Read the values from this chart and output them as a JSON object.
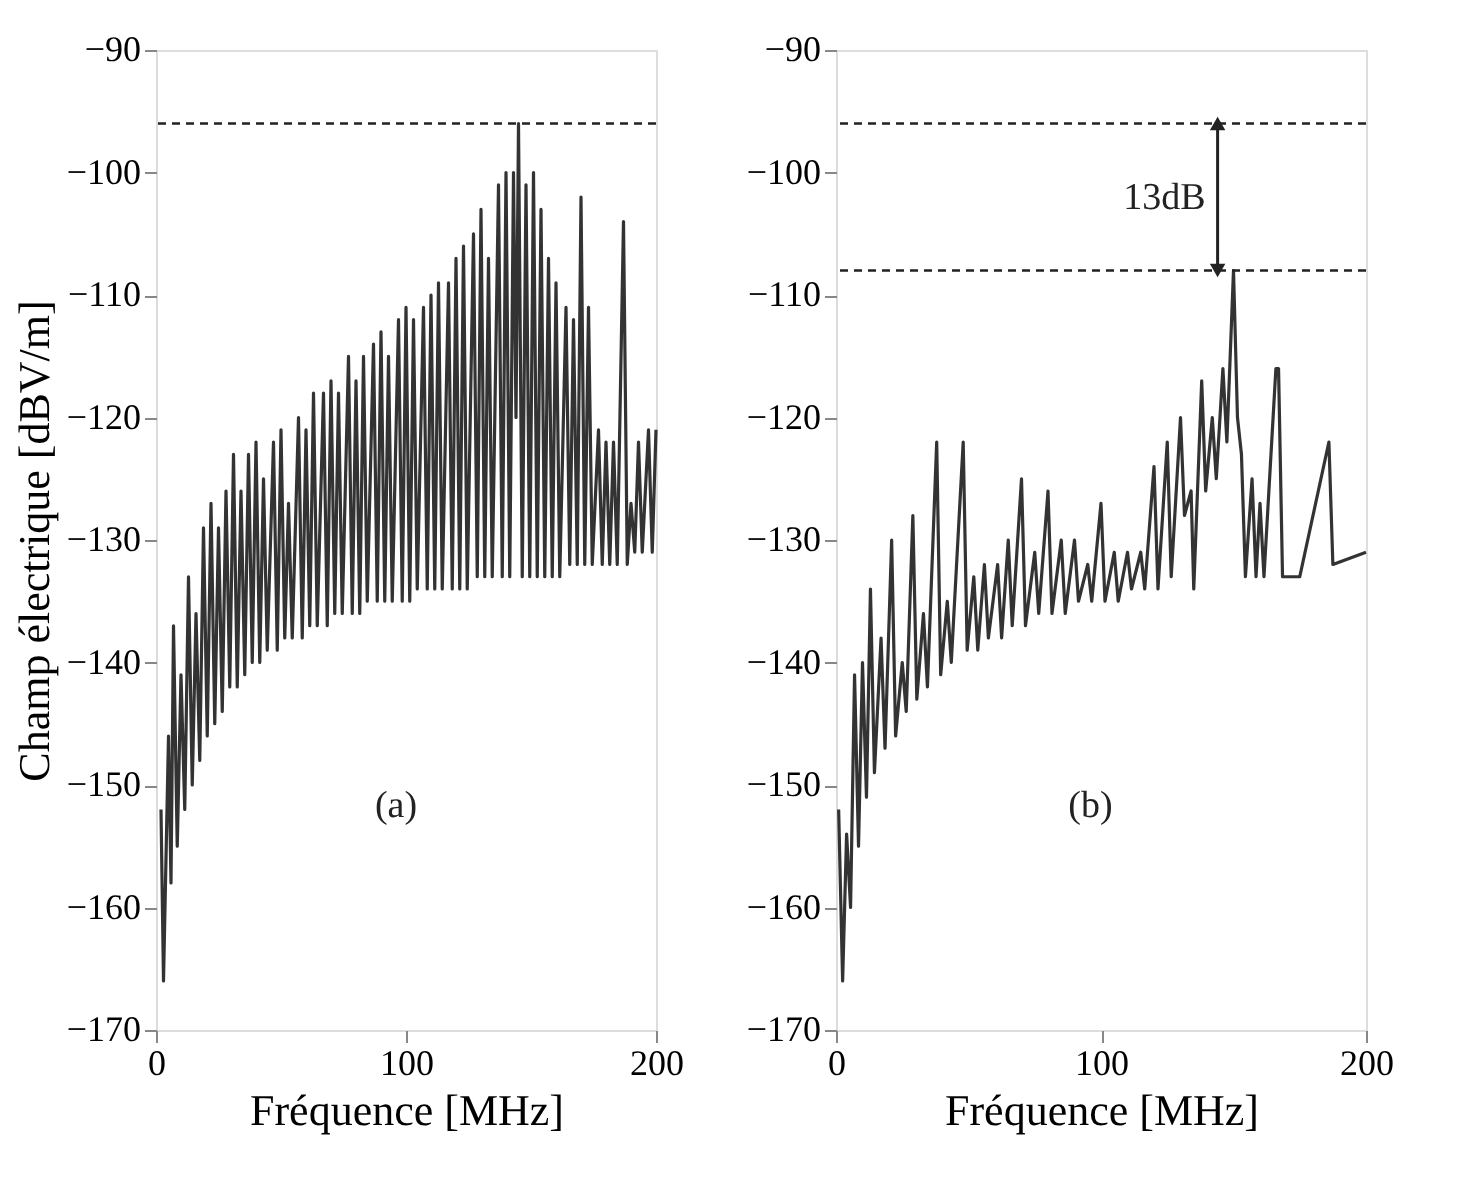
{
  "chart_data": [
    {
      "type": "line",
      "xlabel": "Fréquence  [MHz]",
      "ylabel": "Champ électrique [dBV/m]",
      "xlim": [
        0,
        200
      ],
      "xticks": [
        0,
        100,
        200
      ],
      "ylim": [
        -170,
        -90
      ],
      "yticks": [
        -170,
        -160,
        -150,
        -140,
        -130,
        -120,
        -110,
        -100,
        -90
      ],
      "grid": false,
      "marker": "none",
      "line_style": "solid",
      "annotations": [
        "(a)"
      ],
      "ref_lines": [
        {
          "axis": "y",
          "value": -96,
          "line_style": "dashed"
        }
      ],
      "series": [
        {
          "color": "#333333",
          "x": [
            2,
            3,
            5,
            6,
            7,
            8.5,
            10,
            11.5,
            13,
            14.5,
            16,
            17.5,
            19,
            20.5,
            22,
            23.5,
            25,
            26.5,
            28,
            29.5,
            31,
            32.5,
            34,
            35.5,
            37,
            38.5,
            40,
            41.5,
            43,
            44.5,
            47,
            48.5,
            50,
            51.5,
            53,
            54.5,
            57,
            58.5,
            60,
            61.5,
            63,
            64.5,
            67,
            68.5,
            70,
            71.5,
            73,
            74.5,
            77,
            78.5,
            80,
            81.5,
            83,
            84.5,
            87,
            88.5,
            90,
            91.5,
            93,
            94.5,
            97,
            98.5,
            100,
            101.5,
            103,
            104.5,
            107,
            108.5,
            110,
            111.5,
            113,
            114.5,
            117,
            118.5,
            120,
            121.5,
            123,
            124.5,
            127,
            128.5,
            130,
            131.5,
            133,
            134.5,
            137,
            138.5,
            140,
            141.5,
            143,
            144,
            145,
            146.5,
            148,
            149.5,
            151,
            152.5,
            154,
            155.5,
            157,
            158.5,
            160,
            161.5,
            164,
            165.5,
            167,
            168.5,
            170,
            171.5,
            173,
            174.5,
            177,
            178.5,
            180,
            181.5,
            183,
            184.5,
            187,
            188.5,
            190,
            191.5,
            193,
            194.5,
            197,
            198.5,
            200
          ],
          "values": [
            -152,
            -166,
            -146,
            -158,
            -137,
            -155,
            -141,
            -152,
            -133,
            -150,
            -136,
            -148,
            -129,
            -146,
            -127,
            -145,
            -129,
            -144,
            -126,
            -142,
            -123,
            -142,
            -126,
            -141,
            -123,
            -140,
            -122,
            -140,
            -125,
            -139,
            -122,
            -139,
            -121,
            -138,
            -127,
            -138,
            -120,
            -138,
            -121,
            -137,
            -118,
            -137,
            -118,
            -137,
            -117,
            -136,
            -118,
            -136,
            -115,
            -136,
            -117,
            -136,
            -115,
            -135,
            -114,
            -135,
            -113,
            -135,
            -115,
            -135,
            -112,
            -135,
            -111,
            -135,
            -112,
            -134,
            -111,
            -134,
            -110,
            -134,
            -109,
            -134,
            -109,
            -134,
            -107,
            -134,
            -106,
            -134,
            -105,
            -133,
            -103,
            -133,
            -107,
            -133,
            -101,
            -133,
            -100,
            -133,
            -100,
            -120,
            -96,
            -133,
            -101,
            -133,
            -100,
            -133,
            -103,
            -133,
            -107,
            -133,
            -109,
            -133,
            -111,
            -132,
            -112,
            -132,
            -102,
            -132,
            -111,
            -132,
            -121,
            -132,
            -122,
            -132,
            -122,
            -132,
            -104,
            -132,
            -127,
            -131,
            -122,
            -131,
            -121,
            -131,
            -121
          ]
        }
      ]
    },
    {
      "type": "line",
      "xlabel": "Fréquence  [MHz]",
      "xlim": [
        0,
        200
      ],
      "xticks": [
        0,
        100,
        200
      ],
      "ylim": [
        -170,
        -90
      ],
      "yticks": [
        -170,
        -160,
        -150,
        -140,
        -130,
        -120,
        -110,
        -100,
        -90
      ],
      "grid": false,
      "marker": "none",
      "line_style": "solid",
      "annotations": [
        "(b)",
        "13dB"
      ],
      "ref_lines": [
        {
          "axis": "y",
          "value": -96,
          "line_style": "dashed"
        },
        {
          "axis": "y",
          "value": -108,
          "line_style": "dashed"
        }
      ],
      "series": [
        {
          "color": "#333333",
          "x": [
            1,
            2.5,
            4,
            5.5,
            7,
            8.5,
            10,
            11.5,
            13,
            14.5,
            17,
            18.5,
            21,
            22.5,
            25,
            26.5,
            29,
            30.5,
            33,
            34.5,
            38,
            39.5,
            42,
            43.5,
            48,
            49.5,
            52,
            53.5,
            56,
            57.5,
            61,
            62.5,
            65,
            66.5,
            70,
            71.5,
            75,
            76.5,
            80,
            81.5,
            85,
            86.5,
            90,
            91.5,
            95,
            96.5,
            100,
            101.5,
            105,
            106.5,
            110,
            111.5,
            115,
            116.5,
            120,
            121.5,
            125,
            126.5,
            130,
            131.5,
            134,
            135,
            138,
            139.5,
            142,
            143.5,
            146,
            147.5,
            150,
            151.5,
            153,
            154.5,
            157,
            158.5,
            160,
            161.5,
            166,
            167,
            168.5,
            175,
            186,
            187.5,
            200
          ],
          "values": [
            -152,
            -166,
            -154,
            -160,
            -141,
            -155,
            -140,
            -151,
            -134,
            -149,
            -138,
            -147,
            -130,
            -146,
            -140,
            -144,
            -128,
            -143,
            -136,
            -142,
            -122,
            -141,
            -135,
            -140,
            -122,
            -139,
            -133,
            -139,
            -132,
            -138,
            -132,
            -138,
            -130,
            -137,
            -125,
            -137,
            -131,
            -136,
            -126,
            -136,
            -130,
            -136,
            -130,
            -135,
            -132,
            -135,
            -127,
            -135,
            -131,
            -135,
            -131,
            -134,
            -131,
            -134,
            -124,
            -134,
            -122,
            -133,
            -120,
            -128,
            -126,
            -134,
            -117,
            -126,
            -120,
            -125,
            -116,
            -122,
            -108,
            -120,
            -123,
            -133,
            -125,
            -133,
            -127,
            -133,
            -116,
            -116,
            -133,
            -133,
            -122,
            -132,
            -131
          ]
        }
      ]
    }
  ]
}
